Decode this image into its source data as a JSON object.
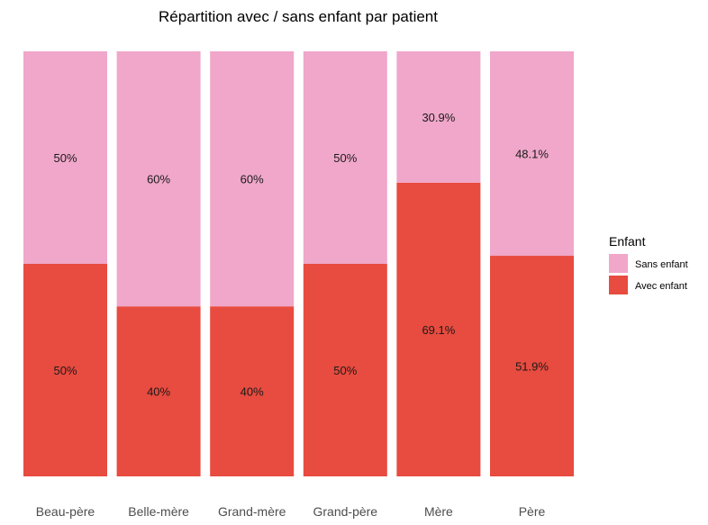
{
  "chart_data": {
    "type": "bar",
    "stacked": true,
    "normalized": true,
    "title": "Répartition avec / sans enfant par patient",
    "xlabel": "",
    "ylabel": "",
    "ylim": [
      0,
      1
    ],
    "grid": false,
    "legend_position": "right",
    "categories": [
      "Beau-père",
      "Belle-mère",
      "Grand-mère",
      "Grand-père",
      "Mère",
      "Père"
    ],
    "series": [
      {
        "name": "Sans enfant",
        "color": "#f0a7ca",
        "values": [
          0.5,
          0.6,
          0.6,
          0.5,
          0.309,
          0.481
        ],
        "labels": [
          "50%",
          "60%",
          "60%",
          "50%",
          "30.9%",
          "48.1%"
        ]
      },
      {
        "name": "Avec enfant",
        "color": "#e84b3f",
        "values": [
          0.5,
          0.4,
          0.4,
          0.5,
          0.691,
          0.519
        ],
        "labels": [
          "50%",
          "40%",
          "40%",
          "50%",
          "69.1%",
          "51.9%"
        ]
      }
    ],
    "legend": {
      "title": "Enfant",
      "entries": [
        "Sans enfant",
        "Avec enfant"
      ]
    }
  }
}
